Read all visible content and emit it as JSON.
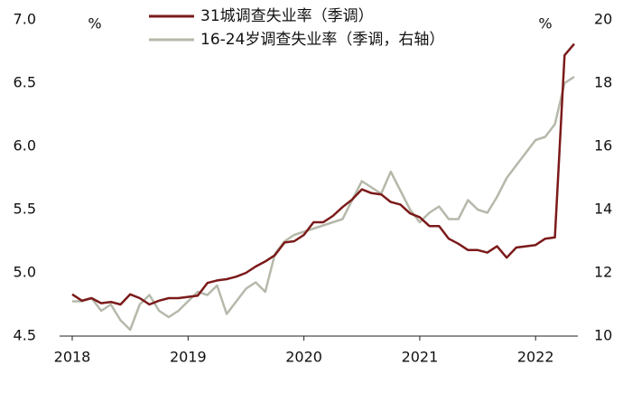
{
  "chart_data": {
    "type": "line",
    "legend": "top",
    "y_unit": "%",
    "y2_unit": "%",
    "categories": [
      "2018",
      null,
      null,
      null,
      null,
      null,
      null,
      null,
      null,
      null,
      null,
      null,
      "2019",
      null,
      null,
      null,
      null,
      null,
      null,
      null,
      null,
      null,
      null,
      null,
      "2020",
      null,
      null,
      null,
      null,
      null,
      null,
      null,
      null,
      null,
      null,
      null,
      "2021",
      null,
      null,
      null,
      null,
      null,
      null,
      null,
      null,
      null,
      null,
      null,
      "2022",
      null,
      null,
      null,
      null
    ],
    "series": [
      {
        "name": "31城调查失业率（季调）",
        "color": "#7b1a1a",
        "axis": "y",
        "values": [
          4.83,
          4.78,
          4.8,
          4.76,
          4.77,
          4.75,
          4.83,
          4.8,
          4.75,
          4.78,
          4.8,
          4.8,
          4.81,
          4.82,
          4.92,
          4.94,
          4.95,
          4.97,
          5.0,
          5.05,
          5.09,
          5.14,
          5.24,
          5.25,
          5.3,
          5.4,
          5.4,
          5.45,
          5.52,
          5.58,
          5.66,
          5.63,
          5.62,
          5.56,
          5.54,
          5.47,
          5.44,
          5.37,
          5.37,
          5.27,
          5.23,
          5.18,
          5.18,
          5.16,
          5.21,
          5.12,
          5.2,
          5.21,
          5.22,
          5.27,
          5.28,
          6.72,
          6.81
        ]
      },
      {
        "name": "16-24岁调查失业率（季调，右轴）",
        "color": "#b5b9aa",
        "axis": "y2",
        "values": [
          11.1,
          11.1,
          11.2,
          10.8,
          11.0,
          10.5,
          10.2,
          11.0,
          11.3,
          10.8,
          10.6,
          10.8,
          11.1,
          11.4,
          11.3,
          11.6,
          10.7,
          11.1,
          11.5,
          11.7,
          11.4,
          12.6,
          13.0,
          13.2,
          13.3,
          13.4,
          13.5,
          13.6,
          13.7,
          14.3,
          14.9,
          14.7,
          14.5,
          15.2,
          14.6,
          14.0,
          13.6,
          13.9,
          14.1,
          13.7,
          13.7,
          14.3,
          14.0,
          13.9,
          14.4,
          15.0,
          15.4,
          15.8,
          16.2,
          16.3,
          16.7,
          18.0,
          18.2
        ]
      }
    ],
    "ylim": [
      4.5,
      7.0
    ],
    "yticks": [
      4.5,
      {
        "value": 5,
        "label": "5.0"
      },
      5.5,
      {
        "value": 6,
        "label": "6.0"
      },
      6.5,
      {
        "value": 7,
        "label": "7.0"
      }
    ],
    "y2lim": [
      10,
      20
    ],
    "y2ticks": [
      10,
      12,
      14,
      16,
      18,
      20
    ]
  }
}
